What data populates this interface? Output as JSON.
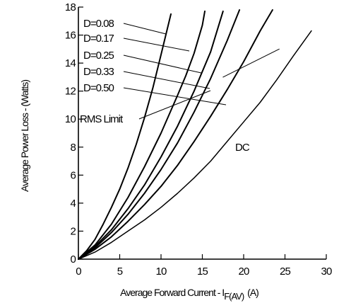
{
  "chart_data": {
    "type": "line",
    "xlabel": "Average Forward Current - I",
    "xlabel_subscript": "F(AV)",
    "xlabel_unit": "(A)",
    "ylabel": "Average Power Loss - (Watts)",
    "xlim": [
      0,
      30
    ],
    "ylim": [
      0,
      18
    ],
    "x_ticks": [
      "0",
      "5",
      "10",
      "15",
      "20",
      "25",
      "30"
    ],
    "y_ticks": [
      "0",
      "2",
      "4",
      "6",
      "8",
      "10",
      "12",
      "14",
      "16",
      "18"
    ],
    "grid": false,
    "series": [
      {
        "name": "D=0.08",
        "x": [
          0,
          1,
          2,
          3,
          4,
          5,
          6,
          7,
          8,
          9,
          10,
          11.2
        ],
        "y": [
          0,
          0.6,
          1.4,
          2.5,
          3.7,
          5.0,
          6.5,
          8.2,
          10.1,
          12.2,
          14.6,
          17.5
        ]
      },
      {
        "name": "D=0.17",
        "x": [
          0,
          2,
          4,
          6,
          8,
          10,
          12,
          13,
          14,
          15,
          15.3
        ],
        "y": [
          0,
          1.0,
          2.5,
          4.4,
          6.6,
          9.0,
          11.7,
          13.1,
          14.7,
          16.7,
          17.7
        ]
      },
      {
        "name": "D=0.25",
        "x": [
          0,
          2,
          4,
          6,
          8,
          10,
          12,
          14,
          16,
          17.5
        ],
        "y": [
          0,
          0.9,
          2.1,
          3.6,
          5.3,
          7.3,
          9.5,
          12.0,
          14.8,
          17.7
        ]
      },
      {
        "name": "D=0.33",
        "x": [
          0,
          2,
          4,
          6,
          8,
          10,
          12,
          14,
          16,
          18,
          19.5
        ],
        "y": [
          0,
          0.8,
          1.9,
          3.2,
          4.7,
          6.4,
          8.3,
          10.5,
          12.9,
          15.6,
          17.8
        ]
      },
      {
        "name": "D=0.50",
        "x": [
          0,
          2,
          4,
          6,
          8,
          10,
          12,
          14,
          16,
          18,
          20,
          22,
          23.5
        ],
        "y": [
          0,
          0.7,
          1.6,
          2.7,
          3.9,
          5.2,
          6.7,
          8.4,
          10.2,
          12.1,
          14.1,
          16.3,
          17.8
        ]
      },
      {
        "name": "DC",
        "x": [
          0,
          2,
          4,
          6,
          8,
          10,
          12,
          14,
          16,
          18,
          20,
          22,
          24,
          26,
          28.2
        ],
        "y": [
          0,
          0.5,
          1.2,
          2.0,
          2.8,
          3.7,
          4.7,
          5.8,
          7.0,
          8.4,
          9.8,
          11.2,
          12.8,
          14.5,
          16.3
        ]
      },
      {
        "name": "RMS Limit",
        "x": [
          17.5,
          24.3
        ],
        "y": [
          13.0,
          15.0
        ]
      }
    ],
    "labels": [
      {
        "text": "D=0.08",
        "series": "D=0.08"
      },
      {
        "text": "D=0.17",
        "series": "D=0.17"
      },
      {
        "text": "D=0.25",
        "series": "D=0.25"
      },
      {
        "text": "D=0.33",
        "series": "D=0.33"
      },
      {
        "text": "D=0.50",
        "series": "D=0.50"
      },
      {
        "text": "RMS Limit",
        "series": "RMS Limit"
      },
      {
        "text": "DC",
        "series": "DC"
      }
    ]
  }
}
